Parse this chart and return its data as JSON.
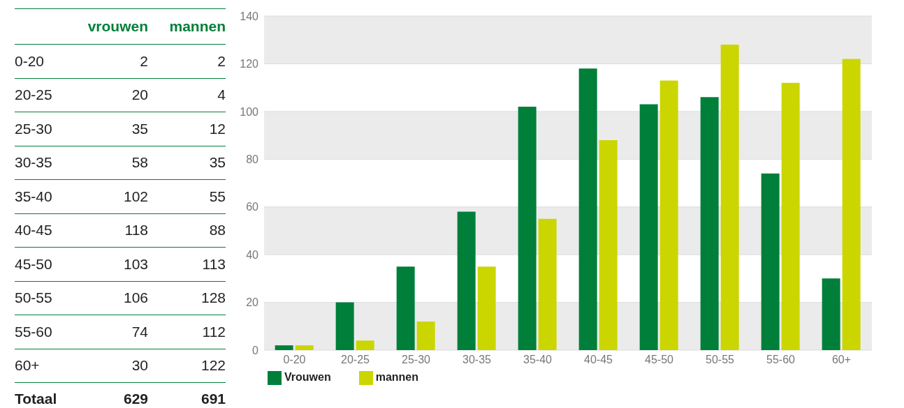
{
  "chart_data": [
    {
      "type": "other",
      "categories": [
        "0-20",
        "20-25",
        "25-30",
        "30-35",
        "35-40",
        "40-45",
        "45-50",
        "50-55",
        "55-60",
        "60+"
      ],
      "series": [
        {
          "name": "vrouwen",
          "values": [
            2,
            20,
            35,
            58,
            102,
            118,
            103,
            106,
            74,
            30
          ]
        },
        {
          "name": "mannen",
          "values": [
            2,
            4,
            12,
            35,
            55,
            88,
            113,
            128,
            112,
            122
          ]
        }
      ],
      "data_labels": true,
      "annotations": [
        "Totaal",
        "629",
        "691"
      ]
    },
    {
      "type": "bar",
      "categories": [
        "0-20",
        "20-25",
        "25-30",
        "30-35",
        "35-40",
        "40-45",
        "45-50",
        "50-55",
        "55-60",
        "60+"
      ],
      "series": [
        {
          "name": "Vrouwen",
          "color": "#007f3a",
          "values": [
            2,
            20,
            35,
            58,
            102,
            118,
            103,
            106,
            74,
            30
          ]
        },
        {
          "name": "mannen",
          "color": "#cbd600",
          "values": [
            2,
            4,
            12,
            35,
            55,
            88,
            113,
            128,
            112,
            122
          ]
        }
      ],
      "ylim": [
        0,
        140
      ],
      "yticks": [
        0,
        20,
        40,
        60,
        80,
        100,
        120,
        140
      ],
      "grid": "y",
      "legend": "bottom"
    }
  ]
}
